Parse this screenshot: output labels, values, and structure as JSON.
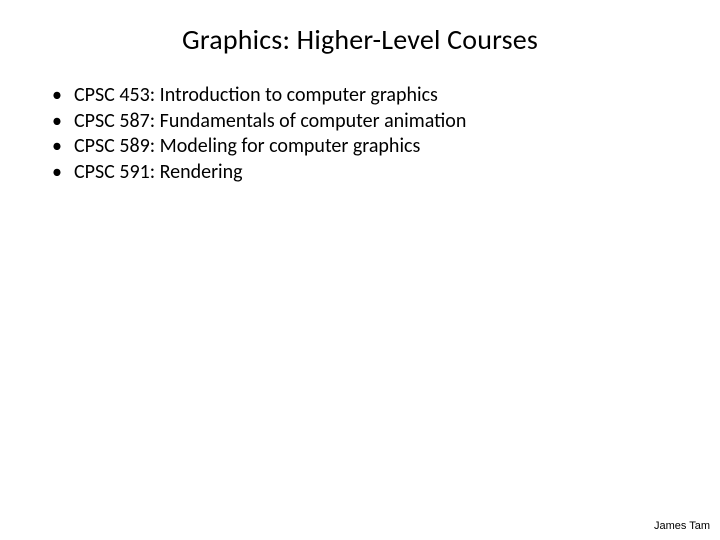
{
  "slide": {
    "title": "Graphics: Higher-Level Courses",
    "title_fontsize": 28,
    "title_color": "#000000",
    "background_color": "#ffffff",
    "bullets": [
      "CPSC 453: Introduction to computer graphics",
      "CPSC 587: Fundamentals of computer animation",
      "CPSC 589: Modeling for computer graphics",
      "CPSC 591: Rendering"
    ],
    "bullet_fontsize": 20,
    "bullet_color": "#000000",
    "bullet_marker": "•",
    "footer": "James Tam",
    "footer_fontsize": 11,
    "footer_color": "#000000"
  }
}
